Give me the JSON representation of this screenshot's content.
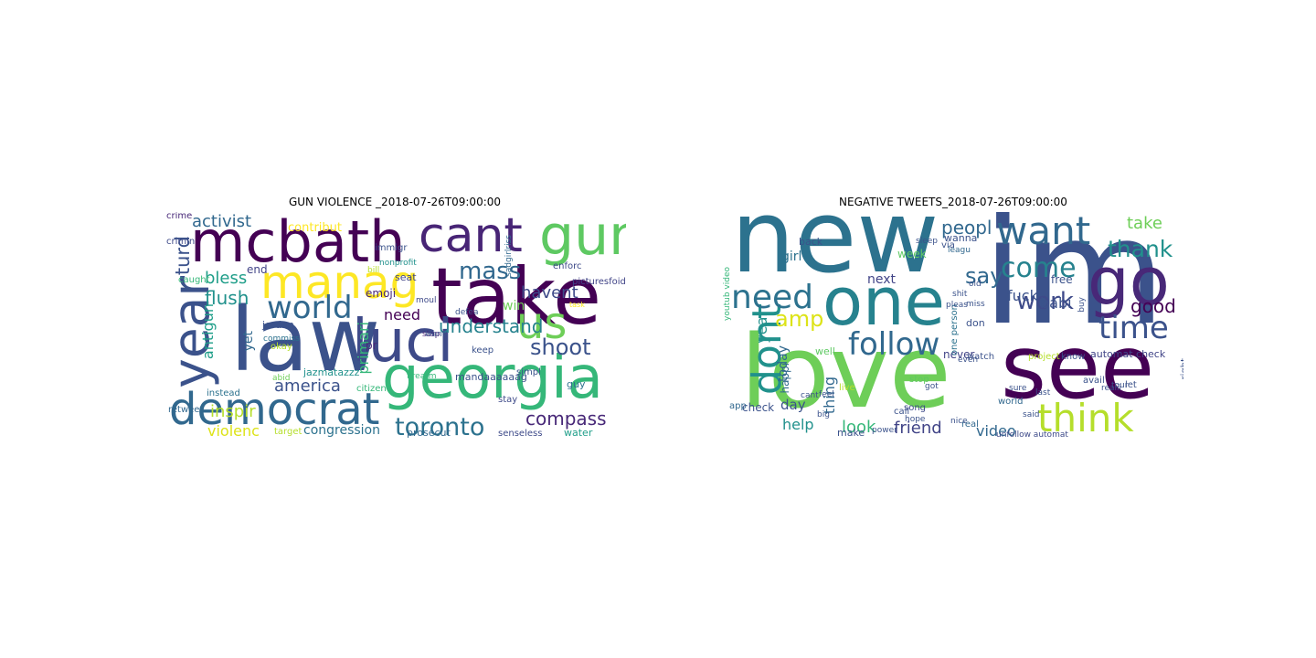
{
  "figure": {
    "panels": [
      {
        "title": "GUN VIOLENCE _2018-07-26T09:00:00",
        "words": [
          {
            "text": "law",
            "color": "#3b528b"
          },
          {
            "text": "take",
            "color": "#440154"
          },
          {
            "text": "mcbath",
            "color": "#440154"
          },
          {
            "text": "georgia",
            "color": "#35b779"
          },
          {
            "text": "luci",
            "color": "#3e4a89"
          },
          {
            "text": "democrat",
            "color": "#31688e"
          },
          {
            "text": "cant",
            "color": "#482576"
          },
          {
            "text": "gun",
            "color": "#5ec962"
          },
          {
            "text": "manag",
            "color": "#fde725"
          },
          {
            "text": "year",
            "color": "#3b528b"
          },
          {
            "text": "us",
            "color": "#6ece58"
          },
          {
            "text": "world",
            "color": "#31688e"
          },
          {
            "text": "toronto",
            "color": "#2c728e"
          },
          {
            "text": "mass",
            "color": "#31688e"
          },
          {
            "text": "shoot",
            "color": "#3b528b"
          },
          {
            "text": "compass",
            "color": "#482878"
          },
          {
            "text": "activist",
            "color": "#31688e"
          },
          {
            "text": "havent",
            "color": "#3e4a89"
          },
          {
            "text": "flush",
            "color": "#21918c"
          },
          {
            "text": "bless",
            "color": "#1f9e89"
          },
          {
            "text": "understand",
            "color": "#26828e"
          },
          {
            "text": "america",
            "color": "#3b528b"
          },
          {
            "text": "inspir",
            "color": "#b5de2b"
          },
          {
            "text": "violenc",
            "color": "#dde318"
          },
          {
            "text": "congression",
            "color": "#2c728e"
          },
          {
            "text": "turd",
            "color": "#3b528b"
          },
          {
            "text": "win",
            "color": "#6ece58"
          },
          {
            "text": "need",
            "color": "#440154"
          },
          {
            "text": "antigun",
            "color": "#1f9e89"
          },
          {
            "text": "yet",
            "color": "#31688e"
          },
          {
            "text": "primari",
            "color": "#35b779"
          },
          {
            "text": "contribut",
            "color": "#fde725"
          },
          {
            "text": "end",
            "color": "#414487"
          },
          {
            "text": "emoji",
            "color": "#482878"
          },
          {
            "text": "pr",
            "color": "#482878"
          },
          {
            "text": "seat",
            "color": "#414487"
          },
          {
            "text": "mandaaaaaag",
            "color": "#3b528b"
          },
          {
            "text": "water",
            "color": "#1f9e89"
          },
          {
            "text": "senseless",
            "color": "#3e4a89"
          },
          {
            "text": "prosecut",
            "color": "#31688e"
          },
          {
            "text": "jordan",
            "color": "#3b528b"
          },
          {
            "text": "jazmatazzz",
            "color": "#21918c"
          },
          {
            "text": "guy",
            "color": "#2c728e"
          },
          {
            "text": "keep",
            "color": "#3b528b"
          },
          {
            "text": "stay",
            "color": "#3e4a89"
          },
          {
            "text": "retweet",
            "color": "#31688e"
          },
          {
            "text": "target",
            "color": "#b5de2b"
          },
          {
            "text": "okay",
            "color": "#b5de2b"
          },
          {
            "text": "instead",
            "color": "#2c728e"
          },
          {
            "text": "citizen",
            "color": "#35b779"
          },
          {
            "text": "crimin",
            "color": "#3e4a89"
          },
          {
            "text": "caught",
            "color": "#35b779"
          },
          {
            "text": "crime",
            "color": "#482878"
          },
          {
            "text": "immigr",
            "color": "#3b528b"
          },
          {
            "text": "enforc",
            "color": "#3e4a89"
          },
          {
            "text": "firearm",
            "color": "#35b779"
          },
          {
            "text": "simpl",
            "color": "#3b528b"
          },
          {
            "text": "picturesfoid",
            "color": "#414487"
          },
          {
            "text": "moul",
            "color": "#3e4a89"
          },
          {
            "text": "stop",
            "color": "#482878"
          },
          {
            "text": "commiss",
            "color": "#2c728e"
          },
          {
            "text": "abid",
            "color": "#6ece58"
          },
          {
            "text": "nonprofit",
            "color": "#21918c"
          },
          {
            "text": "sadgirlriss",
            "color": "#31688e"
          },
          {
            "text": "defea",
            "color": "#3b528b"
          },
          {
            "text": "want",
            "color": "#3b528b"
          },
          {
            "text": "bill",
            "color": "#b5de2b"
          },
          {
            "text": "task",
            "color": "#fde725"
          }
        ]
      },
      {
        "title": "NEGATIVE TWEETS_2018-07-26T09:00:00",
        "words": [
          {
            "text": "new",
            "color": "#2c728e"
          },
          {
            "text": "im",
            "color": "#3b528b"
          },
          {
            "text": "love",
            "color": "#6ece58"
          },
          {
            "text": "see",
            "color": "#440154"
          },
          {
            "text": "one",
            "color": "#26828e"
          },
          {
            "text": "go",
            "color": "#482878"
          },
          {
            "text": "want",
            "color": "#31688e"
          },
          {
            "text": "dont",
            "color": "#21918c"
          },
          {
            "text": "think",
            "color": "#b5de2b"
          },
          {
            "text": "need",
            "color": "#2c728e"
          },
          {
            "text": "follow",
            "color": "#31688e"
          },
          {
            "text": "come",
            "color": "#26828e"
          },
          {
            "text": "time",
            "color": "#3b528b"
          },
          {
            "text": "thank",
            "color": "#21918c"
          },
          {
            "text": "work",
            "color": "#3e4a89"
          },
          {
            "text": "say",
            "color": "#31688e"
          },
          {
            "text": "amp",
            "color": "#dde318"
          },
          {
            "text": "take",
            "color": "#6ece58"
          },
          {
            "text": "good",
            "color": "#440154"
          },
          {
            "text": "peopl",
            "color": "#31688e"
          },
          {
            "text": "look",
            "color": "#35b779"
          },
          {
            "text": "friend",
            "color": "#414487"
          },
          {
            "text": "help",
            "color": "#21918c"
          },
          {
            "text": "video",
            "color": "#31688e"
          },
          {
            "text": "fuck",
            "color": "#3b528b"
          },
          {
            "text": "babi",
            "color": "#3b528b"
          },
          {
            "text": "day",
            "color": "#3b528b"
          },
          {
            "text": "thing",
            "color": "#31688e"
          },
          {
            "text": "year",
            "color": "#21918c"
          },
          {
            "text": "today",
            "color": "#31688e"
          },
          {
            "text": "next",
            "color": "#414487"
          },
          {
            "text": "girl",
            "color": "#2c728e"
          },
          {
            "text": "week",
            "color": "#5ec962"
          },
          {
            "text": "free",
            "color": "#3b528b"
          },
          {
            "text": "via",
            "color": "#3b528b"
          },
          {
            "text": "never",
            "color": "#414487"
          },
          {
            "text": "know",
            "color": "#3b528b"
          },
          {
            "text": "automat check",
            "color": "#414487"
          },
          {
            "text": "happi",
            "color": "#31688e"
          },
          {
            "text": "check",
            "color": "#3b528b"
          },
          {
            "text": "make",
            "color": "#3b528b"
          },
          {
            "text": "call",
            "color": "#3b528b"
          },
          {
            "text": "real",
            "color": "#31688e"
          },
          {
            "text": "don",
            "color": "#3b528b"
          },
          {
            "text": "one person",
            "color": "#2c728e"
          },
          {
            "text": "wanna",
            "color": "#3b528b"
          },
          {
            "text": "back",
            "color": "#3b528b"
          },
          {
            "text": "well",
            "color": "#5ec962"
          },
          {
            "text": "watch",
            "color": "#3b528b"
          },
          {
            "text": "even",
            "color": "#3b528b"
          },
          {
            "text": "song",
            "color": "#3e4a89"
          },
          {
            "text": "world",
            "color": "#31688e"
          },
          {
            "text": "right",
            "color": "#3b528b"
          },
          {
            "text": "unfollow automat",
            "color": "#3e4a89"
          },
          {
            "text": "live",
            "color": "#b5de2b"
          },
          {
            "text": "nice",
            "color": "#3b528b"
          },
          {
            "text": "pleas",
            "color": "#3b528b"
          },
          {
            "text": "leagu",
            "color": "#31688e"
          },
          {
            "text": "buy",
            "color": "#3b528b"
          },
          {
            "text": "let",
            "color": "#3b528b"
          },
          {
            "text": "project",
            "color": "#b5de2b"
          },
          {
            "text": "miss",
            "color": "#3b528b"
          },
          {
            "text": "feel",
            "color": "#3b528b"
          },
          {
            "text": "cant",
            "color": "#3b528b"
          },
          {
            "text": "stop",
            "color": "#5ec962"
          },
          {
            "text": "shit",
            "color": "#3b528b"
          },
          {
            "text": "avail",
            "color": "#3b528b"
          },
          {
            "text": "tour",
            "color": "#3b528b"
          },
          {
            "text": "youtub video",
            "color": "#35b779"
          },
          {
            "text": "app",
            "color": "#31688e"
          },
          {
            "text": "power",
            "color": "#3b528b"
          },
          {
            "text": "got",
            "color": "#3b528b"
          },
          {
            "text": "sure",
            "color": "#3b528b"
          },
          {
            "text": "last",
            "color": "#3b528b"
          },
          {
            "text": "hope",
            "color": "#3b528b"
          },
          {
            "text": "said",
            "color": "#3b528b"
          },
          {
            "text": "reaiii",
            "color": "#3b528b"
          },
          {
            "text": "sleep",
            "color": "#3b528b"
          },
          {
            "text": "old",
            "color": "#3b528b"
          },
          {
            "text": "big",
            "color": "#3b528b"
          }
        ]
      }
    ]
  }
}
